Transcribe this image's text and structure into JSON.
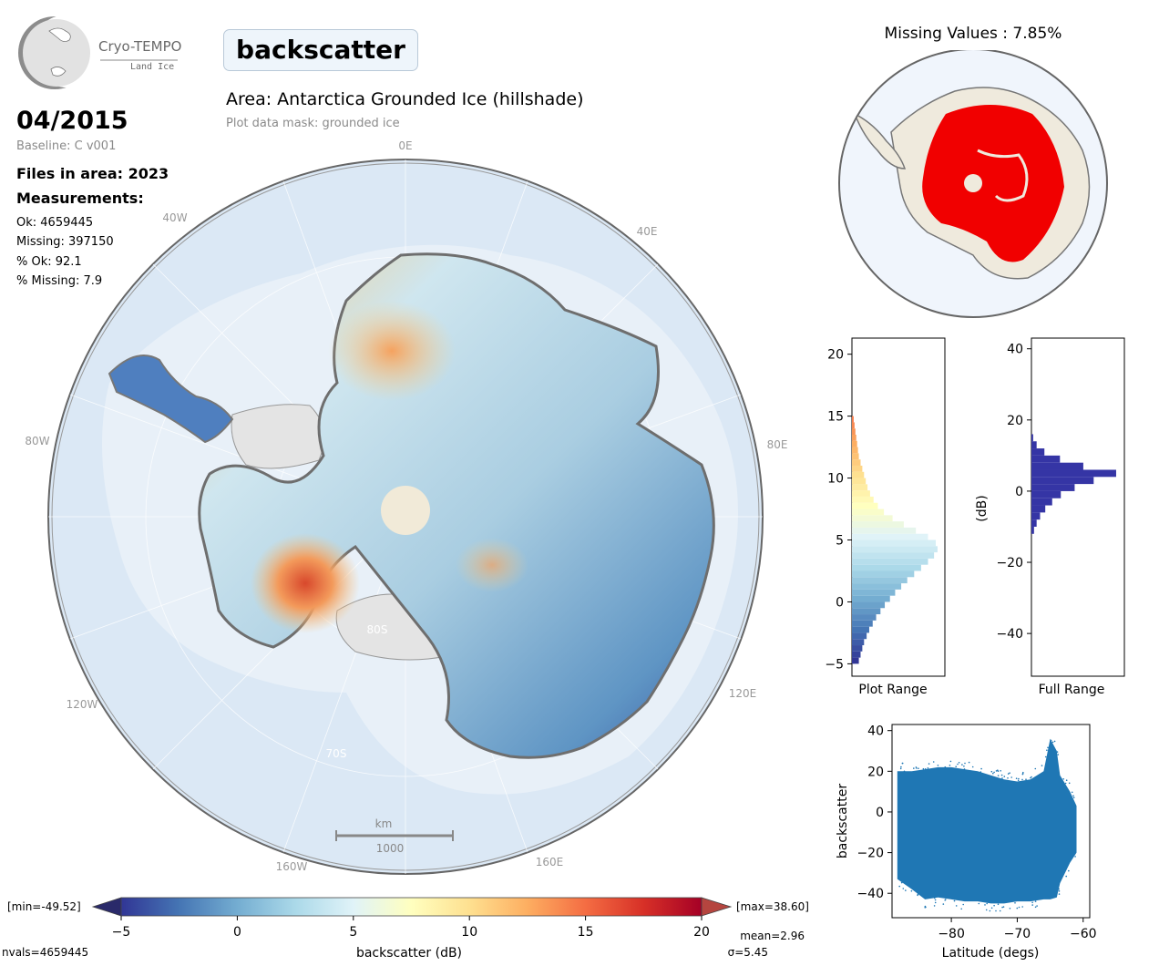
{
  "logo": {
    "name": "Cryo-TEMPO",
    "sub": "Land Ice"
  },
  "title": "backscatter",
  "area_title": "Area: Antarctica Grounded Ice (hillshade)",
  "mask_note": "Plot data mask: grounded ice",
  "date": "04/2015",
  "baseline": "Baseline: C v001",
  "files_in_area": "Files in area: 2023",
  "measurements_label": "Measurements:",
  "stats": [
    "Ok: 4659445",
    "Missing: 397150",
    "% Ok: 92.1",
    "% Missing: 7.9"
  ],
  "missing_title": "Missing Values : 7.85%",
  "map": {
    "longitude_labels": [
      "0E",
      "40E",
      "80E",
      "120E",
      "160E",
      "160W",
      "120W",
      "80W",
      "40W"
    ],
    "latitude_labels": [
      "80S",
      "70S"
    ],
    "scalebar_unit": "km",
    "scalebar_value": "1000"
  },
  "colorbar": {
    "min_label": "[min=-49.52]",
    "max_label": "[max=38.60]",
    "ticks": [
      -5,
      0,
      5,
      10,
      15,
      20
    ],
    "label": "backscatter (dB)",
    "mean": "mean=2.96",
    "sigma": "σ=5.45",
    "nvals": "nvals=4659445",
    "colors": [
      "#313695",
      "#4575b4",
      "#74add1",
      "#abd9e9",
      "#e0f3f8",
      "#ffffbf",
      "#fee090",
      "#fdae61",
      "#f46d43",
      "#d73027",
      "#a50026"
    ]
  },
  "chart_data": [
    {
      "type": "bar",
      "title": "",
      "xlabel": "Plot Range",
      "ylabel": "",
      "orientation": "horizontal",
      "ylim": [
        -6,
        21.3
      ],
      "yticks": [
        -5,
        0,
        5,
        10,
        15,
        20
      ],
      "bins": [
        -5,
        -4.5,
        -4,
        -3.5,
        -3,
        -2.5,
        -2,
        -1.5,
        -1,
        -0.5,
        0,
        0.5,
        1,
        1.5,
        2,
        2.5,
        3,
        3.5,
        4,
        4.5,
        5,
        5.5,
        6,
        6.5,
        7,
        7.5,
        8,
        8.5,
        9,
        9.5,
        10,
        10.5,
        11,
        11.5,
        12,
        12.5,
        13,
        13.5,
        14,
        14.5
      ],
      "values": [
        0.08,
        0.1,
        0.12,
        0.14,
        0.17,
        0.2,
        0.24,
        0.28,
        0.33,
        0.38,
        0.44,
        0.5,
        0.57,
        0.64,
        0.72,
        0.8,
        0.88,
        0.95,
        0.99,
        0.97,
        0.88,
        0.74,
        0.6,
        0.47,
        0.37,
        0.3,
        0.25,
        0.21,
        0.18,
        0.16,
        0.14,
        0.12,
        0.1,
        0.08,
        0.07,
        0.06,
        0.05,
        0.04,
        0.03,
        0.02
      ]
    },
    {
      "type": "bar",
      "title": "",
      "xlabel": "Full Range",
      "ylabel": "(dB)",
      "orientation": "horizontal",
      "ylim": [
        -52,
        43
      ],
      "yticks": [
        -40,
        -20,
        0,
        20,
        40
      ],
      "color": "#3535a5",
      "bins": [
        -12,
        -10,
        -8,
        -6,
        -4,
        -2,
        0,
        2,
        4,
        6,
        8,
        10,
        12,
        14
      ],
      "values": [
        0.03,
        0.06,
        0.1,
        0.16,
        0.24,
        0.34,
        0.5,
        0.72,
        0.98,
        0.6,
        0.33,
        0.15,
        0.06,
        0.02
      ]
    },
    {
      "type": "scatter",
      "title": "",
      "xlabel": "Latitude (degs)",
      "ylabel": "backscatter",
      "xlim": [
        -89,
        -59
      ],
      "ylim": [
        -52,
        43
      ],
      "xticks": [
        -80,
        -70,
        -60
      ],
      "yticks": [
        40,
        20,
        0,
        -20,
        -40
      ],
      "color": "#1f77b4",
      "envelope": {
        "x": [
          -88.2,
          -86,
          -84,
          -82,
          -80,
          -78,
          -76,
          -74,
          -72,
          -70,
          -68,
          -66,
          -65,
          -64,
          -63.5,
          -62,
          -61
        ],
        "ymax": [
          20,
          20,
          21,
          22,
          22,
          21,
          20,
          18,
          16,
          15,
          16,
          20,
          36,
          30,
          18,
          10,
          3
        ],
        "ymin": [
          -33,
          -38,
          -43,
          -42,
          -43,
          -44,
          -44,
          -45,
          -45,
          -44,
          -44,
          -43,
          -43,
          -42,
          -35,
          -25,
          -20
        ]
      }
    }
  ]
}
